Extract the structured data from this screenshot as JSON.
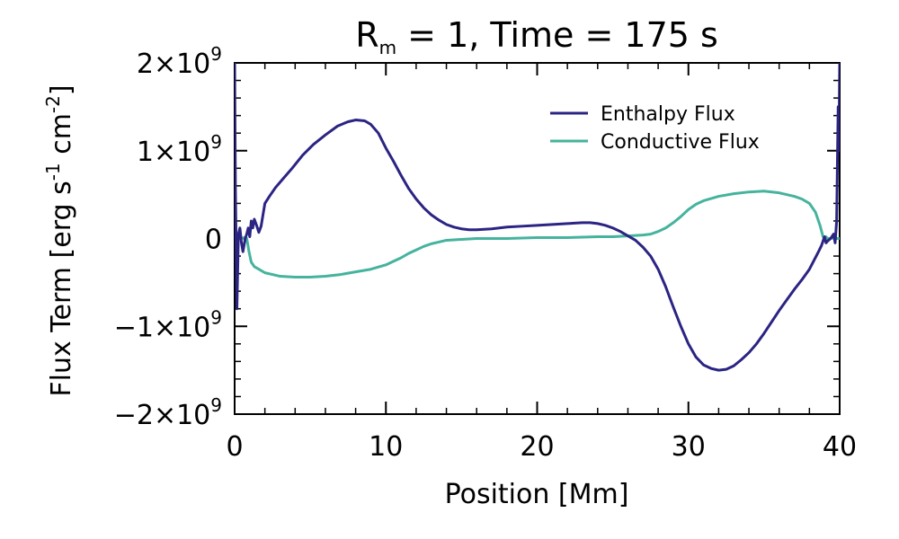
{
  "chart_data": {
    "type": "line",
    "title": {
      "main": "R",
      "sub": "m",
      "rest": " = 1, Time = 175 s"
    },
    "xlabel": "Position [Mm]",
    "ylabel": {
      "base": "Flux Term [erg s",
      "exp1": "-1",
      "mid": " cm",
      "exp2": "-2",
      "end": "]"
    },
    "xlim": [
      0,
      40
    ],
    "ylim": [
      -2.0,
      2.0
    ],
    "y_unit_exponent": 9,
    "x_ticks": [
      {
        "value": 0,
        "label": "0"
      },
      {
        "value": 10,
        "label": "10"
      },
      {
        "value": 20,
        "label": "20"
      },
      {
        "value": 30,
        "label": "30"
      },
      {
        "value": 40,
        "label": "40"
      }
    ],
    "y_ticks": [
      {
        "value": 2,
        "prefix": "2×10",
        "exp": "9"
      },
      {
        "value": 1,
        "prefix": "1×10",
        "exp": "9"
      },
      {
        "value": 0,
        "prefix": "0",
        "exp": ""
      },
      {
        "value": -1,
        "prefix": "−1×10",
        "exp": "9"
      },
      {
        "value": -2,
        "prefix": "−2×10",
        "exp": "9"
      }
    ],
    "legend": {
      "position": "top-right",
      "entries": [
        "Enthalpy Flux",
        "Conductive Flux"
      ]
    },
    "series": [
      {
        "name": "Enthalpy Flux",
        "color": "#2b2483",
        "x": [
          0.0,
          0.05,
          0.15,
          0.25,
          0.35,
          0.45,
          0.55,
          0.7,
          0.8,
          0.9,
          1.0,
          1.1,
          1.2,
          1.3,
          1.45,
          1.6,
          1.75,
          2.0,
          2.3,
          2.7,
          3.2,
          3.8,
          4.5,
          5.2,
          6.0,
          6.8,
          7.5,
          8.0,
          8.6,
          9.0,
          9.5,
          10.0,
          10.5,
          11.0,
          11.5,
          12.0,
          12.5,
          13.0,
          13.5,
          14.0,
          14.5,
          15.0,
          15.5,
          16.0,
          17.0,
          18.0,
          19.0,
          20.0,
          21.0,
          22.0,
          23.0,
          23.5,
          24.0,
          24.5,
          25.0,
          25.5,
          26.0,
          26.5,
          27.0,
          27.5,
          28.0,
          28.5,
          29.0,
          29.5,
          30.0,
          30.5,
          31.0,
          31.5,
          32.0,
          32.5,
          33.0,
          33.5,
          34.0,
          34.5,
          35.0,
          35.5,
          36.0,
          36.5,
          37.0,
          37.5,
          38.0,
          38.3,
          38.6,
          38.8,
          39.0,
          39.1,
          39.2,
          39.4,
          39.6,
          39.7,
          39.8,
          39.9,
          39.95,
          40.0
        ],
        "values": [
          2.0,
          0.6,
          -0.8,
          0.05,
          0.12,
          -0.05,
          -0.15,
          0.0,
          0.05,
          0.12,
          0.02,
          0.2,
          0.12,
          0.22,
          0.15,
          0.07,
          0.14,
          0.4,
          0.48,
          0.58,
          0.68,
          0.8,
          0.95,
          1.07,
          1.18,
          1.28,
          1.33,
          1.35,
          1.34,
          1.3,
          1.2,
          1.03,
          0.88,
          0.72,
          0.57,
          0.45,
          0.35,
          0.27,
          0.21,
          0.16,
          0.13,
          0.11,
          0.1,
          0.1,
          0.11,
          0.13,
          0.14,
          0.15,
          0.16,
          0.17,
          0.18,
          0.18,
          0.17,
          0.15,
          0.12,
          0.08,
          0.03,
          -0.02,
          -0.1,
          -0.2,
          -0.35,
          -0.55,
          -0.78,
          -1.0,
          -1.2,
          -1.35,
          -1.44,
          -1.48,
          -1.5,
          -1.49,
          -1.45,
          -1.38,
          -1.3,
          -1.2,
          -1.08,
          -0.95,
          -0.82,
          -0.7,
          -0.58,
          -0.47,
          -0.35,
          -0.25,
          -0.15,
          -0.08,
          0.02,
          -0.05,
          -0.03,
          0.0,
          0.05,
          -0.05,
          0.2,
          1.5,
          1.0,
          2.0
        ]
      },
      {
        "name": "Conductive Flux",
        "color": "#45b39d",
        "x": [
          0.0,
          0.2,
          0.4,
          0.6,
          0.8,
          0.95,
          1.1,
          1.3,
          1.6,
          2.0,
          2.5,
          3.0,
          4.0,
          5.0,
          6.0,
          7.0,
          8.0,
          9.0,
          10.0,
          10.5,
          11.0,
          11.5,
          12.0,
          12.5,
          13.0,
          13.5,
          14.0,
          15.0,
          16.0,
          17.0,
          18.0,
          20.0,
          22.0,
          24.0,
          25.0,
          26.0,
          27.0,
          27.5,
          28.0,
          28.5,
          29.0,
          29.5,
          30.0,
          30.5,
          31.0,
          32.0,
          33.0,
          34.0,
          35.0,
          36.0,
          37.0,
          37.5,
          38.0,
          38.4,
          38.7,
          38.9,
          39.0,
          39.1,
          39.2,
          39.4,
          39.6,
          39.8,
          40.0
        ],
        "values": [
          0.0,
          0.02,
          0.0,
          0.01,
          0.0,
          -0.15,
          -0.27,
          -0.32,
          -0.35,
          -0.39,
          -0.41,
          -0.43,
          -0.44,
          -0.44,
          -0.43,
          -0.41,
          -0.38,
          -0.35,
          -0.3,
          -0.26,
          -0.22,
          -0.17,
          -0.13,
          -0.09,
          -0.06,
          -0.04,
          -0.02,
          -0.01,
          0.0,
          0.0,
          0.0,
          0.01,
          0.01,
          0.02,
          0.02,
          0.03,
          0.04,
          0.05,
          0.08,
          0.12,
          0.18,
          0.25,
          0.33,
          0.39,
          0.43,
          0.48,
          0.51,
          0.53,
          0.54,
          0.52,
          0.48,
          0.45,
          0.4,
          0.3,
          0.15,
          0.02,
          0.0,
          0.02,
          0.0,
          0.0,
          0.01,
          0.0,
          0.0
        ]
      }
    ]
  }
}
